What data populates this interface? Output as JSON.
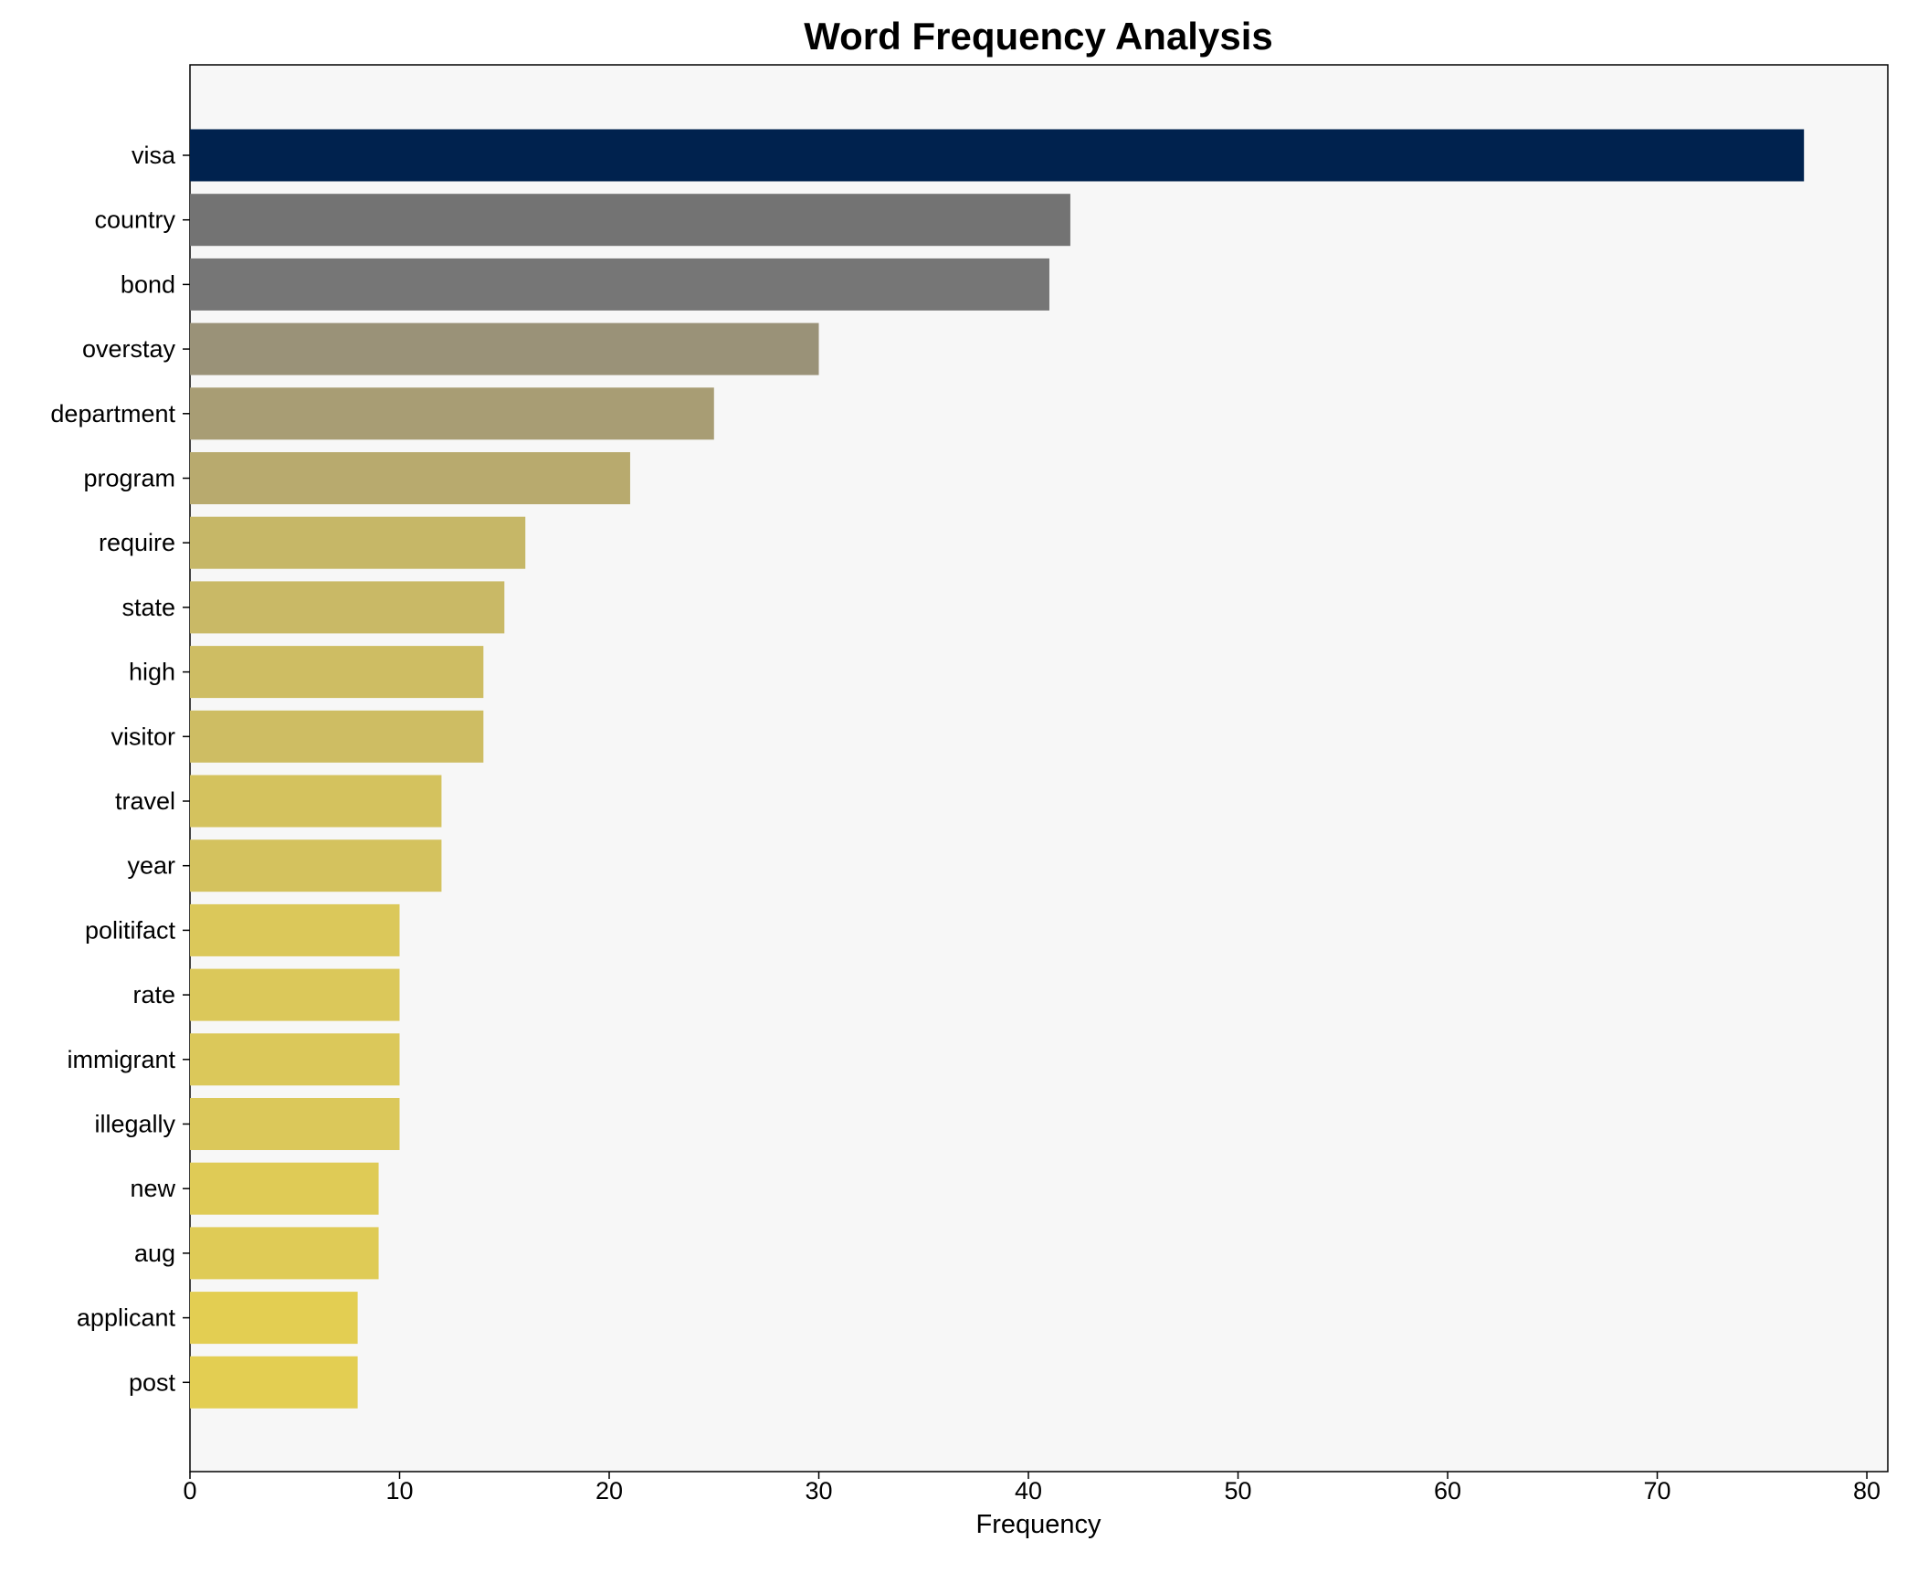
{
  "chart_data": {
    "type": "bar",
    "orientation": "horizontal",
    "title": "Word Frequency Analysis",
    "xlabel": "Frequency",
    "ylabel": "",
    "xlim": [
      0,
      81
    ],
    "xticks": [
      "0",
      "10",
      "20",
      "30",
      "40",
      "50",
      "60",
      "70",
      "80"
    ],
    "grid": false,
    "categories": [
      "visa",
      "country",
      "bond",
      "overstay",
      "department",
      "program",
      "require",
      "state",
      "high",
      "visitor",
      "travel",
      "year",
      "politifact",
      "rate",
      "immigrant",
      "illegally",
      "new",
      "aug",
      "applicant",
      "post"
    ],
    "values": [
      77,
      42,
      41,
      30,
      25,
      21,
      16,
      15,
      14,
      14,
      12,
      12,
      10,
      10,
      10,
      10,
      9,
      9,
      8,
      8
    ],
    "colors": [
      "#00224e",
      "#737373",
      "#767676",
      "#9a9278",
      "#a89d74",
      "#b8aa6e",
      "#c6b767",
      "#c9b966",
      "#cebd63",
      "#cebd63",
      "#d4c25e",
      "#d4c25e",
      "#dbc85a",
      "#dbc85a",
      "#dbc85a",
      "#dbc85a",
      "#dfcb56",
      "#dfcb56",
      "#e3ce52",
      "#e3ce52"
    ],
    "plot_background": "#f7f7f7"
  }
}
